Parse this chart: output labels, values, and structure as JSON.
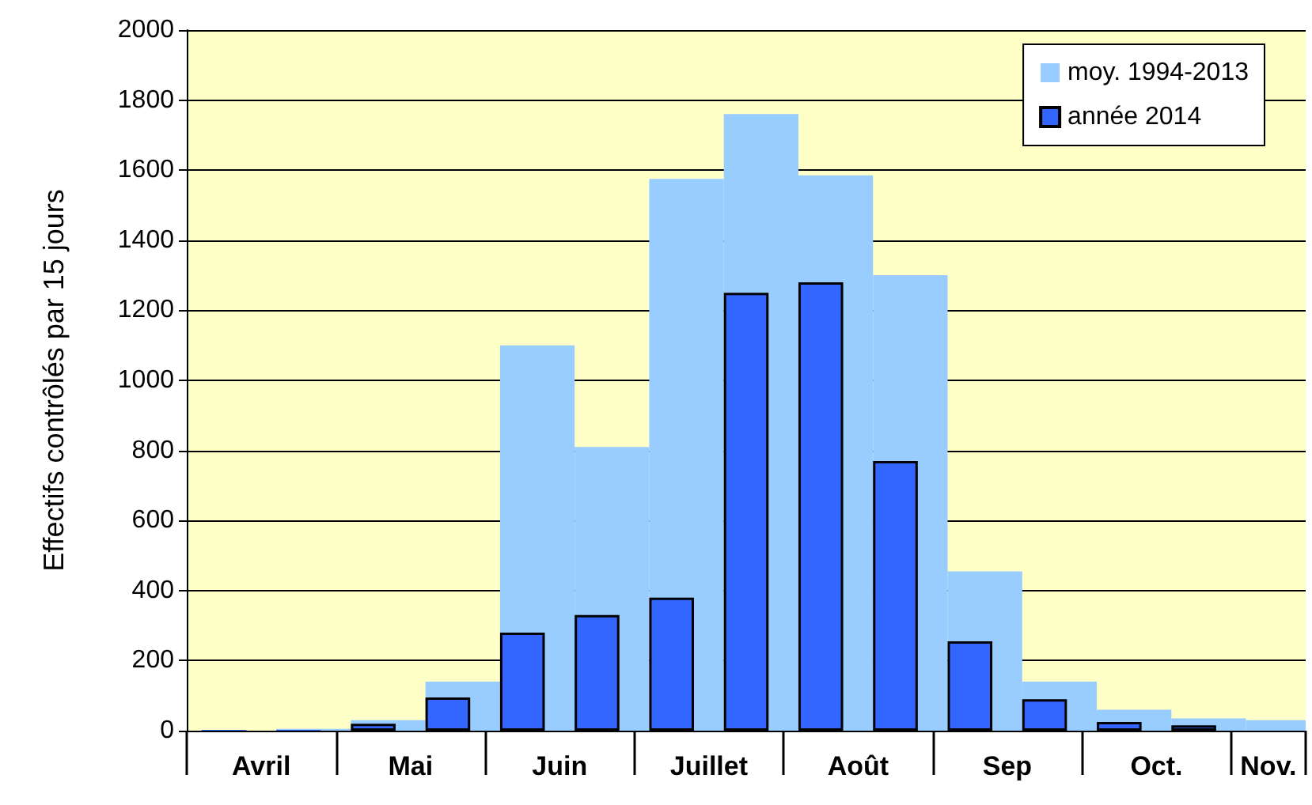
{
  "chart_data": {
    "type": "bar",
    "ylabel": "Effectifs contrôlés par 15 jours",
    "categories": [
      "Avril",
      null,
      "Mai",
      null,
      "Juin",
      null,
      "Juillet",
      null,
      "Août",
      null,
      "Sep",
      null,
      "Oct.",
      null,
      "Nov."
    ],
    "series": [
      {
        "name": "moy. 1994-2013",
        "color": "#99ccff",
        "values": [
          null,
          5,
          30,
          140,
          1100,
          810,
          1575,
          1760,
          1585,
          1300,
          455,
          140,
          60,
          35,
          30
        ]
      },
      {
        "name": "année 2014",
        "color": "#3366ff",
        "values": [
          2,
          2,
          20,
          95,
          280,
          330,
          380,
          1250,
          1280,
          770,
          255,
          90,
          25,
          15,
          null
        ]
      }
    ],
    "ylim": [
      0,
      2000
    ],
    "yticks": [
      0,
      200,
      400,
      600,
      800,
      1000,
      1200,
      1400,
      1600,
      1800,
      2000
    ],
    "grid": "y",
    "legend": "top right"
  }
}
